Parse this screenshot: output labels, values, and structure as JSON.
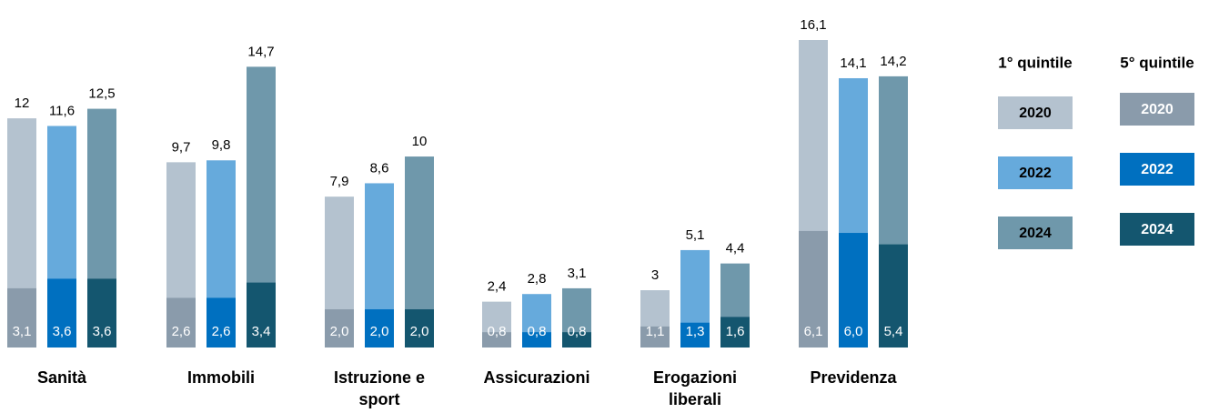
{
  "chart_data": {
    "type": "bar",
    "categories": [
      "Sanità",
      "Immobili",
      "Istruzione e sport",
      "Assicurazioni",
      "Erogazioni liberali",
      "Previdenza"
    ],
    "series_groups": [
      {
        "name": "1° quintile",
        "series": [
          {
            "name": "2020",
            "color": "#b4c2cf",
            "values": [
              12,
              9.7,
              7.9,
              2.4,
              3,
              16.1
            ],
            "value_labels": [
              "12",
              "9,7",
              "7,9",
              "2,4",
              "3",
              "16,1"
            ]
          },
          {
            "name": "2022",
            "color": "#66aadc",
            "values": [
              11.6,
              9.8,
              8.6,
              2.8,
              5.1,
              14.1
            ],
            "value_labels": [
              "11,6",
              "9,8",
              "8,6",
              "2,8",
              "5,1",
              "14,1"
            ]
          },
          {
            "name": "2024",
            "color": "#6f98ab",
            "values": [
              12.5,
              14.7,
              10,
              3.1,
              4.4,
              14.2
            ],
            "value_labels": [
              "12,5",
              "14,7",
              "10",
              "3,1",
              "4,4",
              "14,2"
            ]
          }
        ]
      },
      {
        "name": "5° quintile",
        "series": [
          {
            "name": "2020",
            "color": "#8a9bab",
            "values": [
              3.1,
              2.6,
              2.0,
              0.8,
              1.1,
              6.1
            ],
            "value_labels": [
              "3,1",
              "2,6",
              "2,0",
              "0,8",
              "1,1",
              "6,1"
            ]
          },
          {
            "name": "2022",
            "color": "#0070c0",
            "values": [
              3.6,
              2.6,
              2.0,
              0.8,
              1.3,
              6.0
            ],
            "value_labels": [
              "3,6",
              "2,6",
              "2,0",
              "0,8",
              "1,3",
              "6,0"
            ]
          },
          {
            "name": "2024",
            "color": "#14566f",
            "values": [
              3.6,
              3.4,
              2.0,
              0.8,
              1.6,
              5.4
            ],
            "value_labels": [
              "3,6",
              "3,4",
              "2,0",
              "0,8",
              "1,6",
              "5,4"
            ]
          }
        ]
      }
    ]
  }
}
